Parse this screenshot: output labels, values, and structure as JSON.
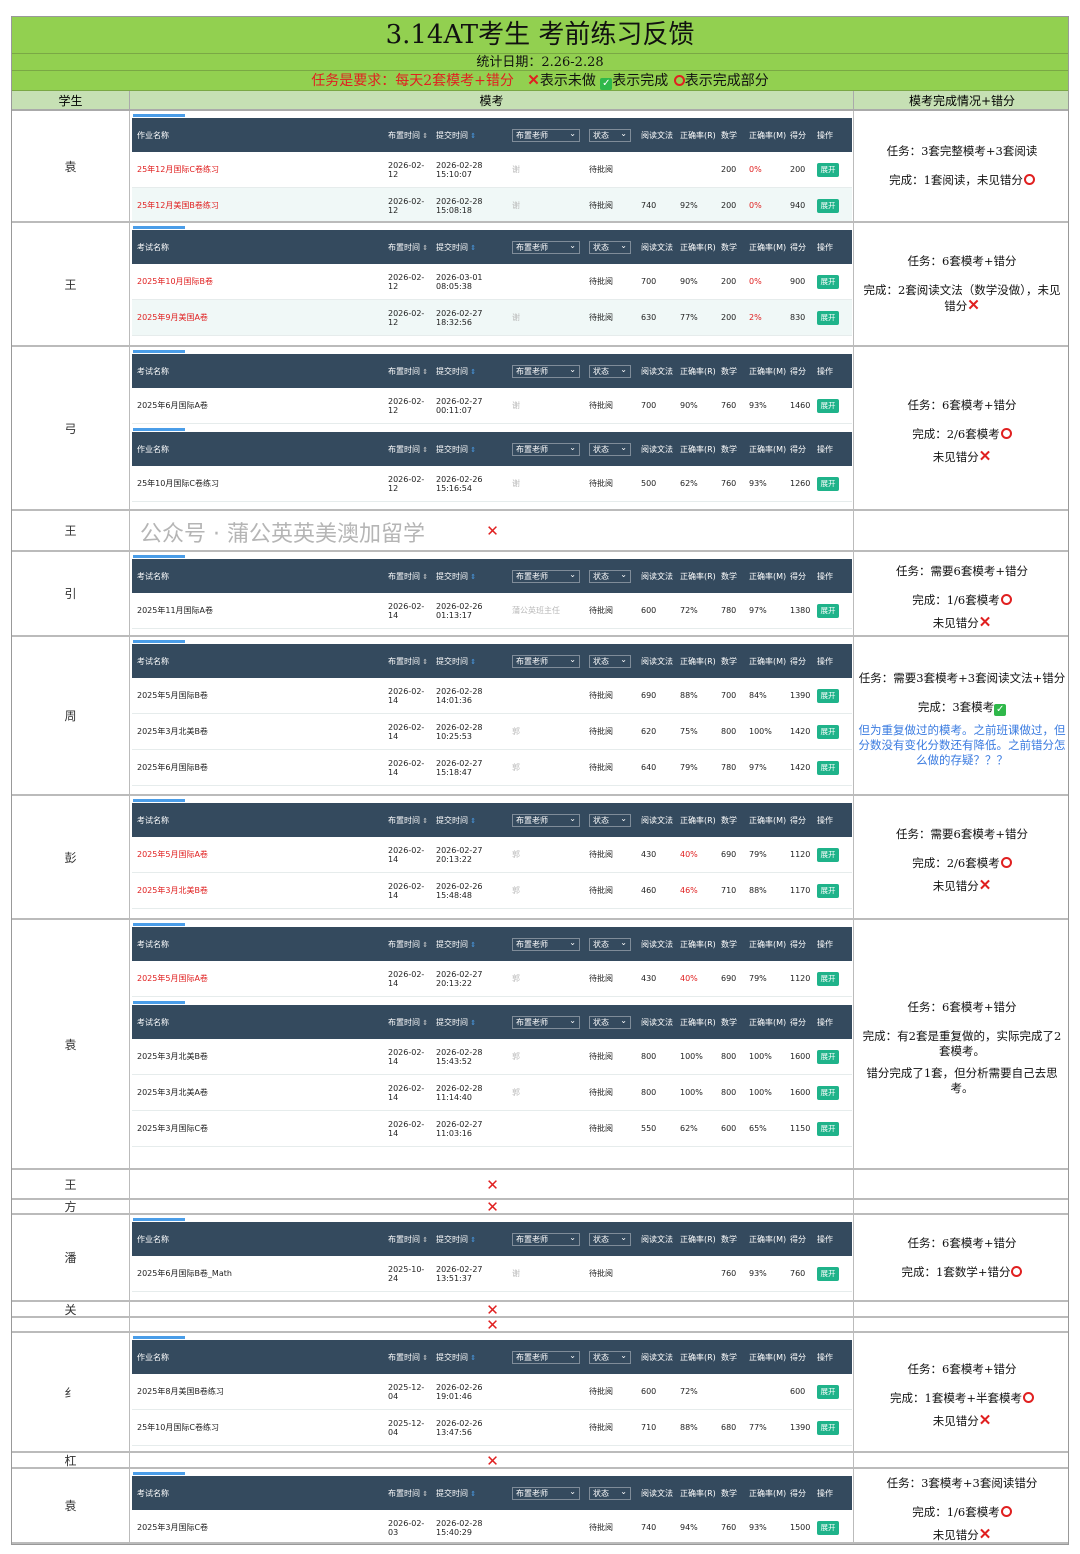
{
  "header": {
    "title": "3.14AT考生 考前练习反馈",
    "date_range": "统计日期：2.26-2.28",
    "task_requirement": "任务是要求：每天2套模考+错分",
    "legend_not_done": "表示未做",
    "legend_done": "表示完成",
    "legend_partial": "表示完成部分"
  },
  "columns": {
    "student": "学生",
    "mock": "模考",
    "status": "模考完成情况+错分"
  },
  "table_labels": {
    "name_hw": "作业名称",
    "name_exam": "考试名称",
    "assign_time": "布置时间",
    "submit_time": "提交时间",
    "teacher": "布置老师",
    "state": "状态",
    "reading": "阅读文法",
    "rate_r": "正确率(R)",
    "math": "数学",
    "rate_m": "正确率(M)",
    "score": "得分",
    "op": "操作",
    "status_value": "待批阅",
    "expand": "展开"
  },
  "colors": {
    "accent_green": "#92d050",
    "header_dark": "#344a5e",
    "red": "#e02020",
    "button": "#1fb38a",
    "note_blue": "#3a7be0"
  },
  "students": [
    {
      "name": "袁",
      "tables": [
        {
          "kind": "hw",
          "rows": [
            {
              "name": "25年12月国际C卷练习",
              "red": true,
              "assigned": "2026-02-12",
              "submitted": "2026-02-28 15:10:07",
              "teacher": "谢",
              "reading": "",
              "rate_r": "",
              "math": "200",
              "rate_m": "0%",
              "m_red": true,
              "score": "200"
            },
            {
              "name": "25年12月美国B卷练习",
              "red": true,
              "assigned": "2026-02-12",
              "submitted": "2026-02-28 15:08:18",
              "teacher": "谢",
              "reading": "740",
              "rate_r": "92%",
              "math": "200",
              "rate_m": "0%",
              "m_red": true,
              "score": "940"
            }
          ]
        }
      ],
      "remark": [
        {
          "text": "任务：3套完整模考+3套阅读"
        },
        {
          "text": "完成：1套阅读，未见错分",
          "mark": "circle"
        }
      ]
    },
    {
      "name": "王",
      "tables": [
        {
          "kind": "exam",
          "rows": [
            {
              "name": "2025年10月国际B卷",
              "red": true,
              "assigned": "2026-02-12",
              "submitted": "2026-03-01 08:05:38",
              "teacher": "",
              "reading": "700",
              "rate_r": "90%",
              "math": "200",
              "rate_m": "0%",
              "m_red": true,
              "score": "900"
            },
            {
              "name": "2025年9月美国A卷",
              "red": true,
              "assigned": "2026-02-12",
              "submitted": "2026-02-27 18:32:56",
              "teacher": "谢",
              "reading": "630",
              "rate_r": "77%",
              "math": "200",
              "rate_m": "2%",
              "m_red": true,
              "score": "830"
            }
          ]
        }
      ],
      "remark": [
        {
          "text": "任务：6套模考+错分"
        },
        {
          "text": "完成：2套阅读文法（数学没做），未见错分",
          "mark": "cross"
        }
      ]
    },
    {
      "name": "弓",
      "tables": [
        {
          "kind": "exam",
          "rows": [
            {
              "name": "2025年6月国际A卷",
              "assigned": "2026-02-12",
              "submitted": "2026-02-27 00:11:07",
              "teacher": "谢",
              "reading": "700",
              "rate_r": "90%",
              "math": "760",
              "rate_m": "93%",
              "score": "1460"
            }
          ]
        },
        {
          "kind": "hw",
          "rows": [
            {
              "name": "25年10月国际C卷练习",
              "assigned": "2026-02-12",
              "submitted": "2026-02-26 15:16:54",
              "teacher": "谢",
              "reading": "500",
              "rate_r": "62%",
              "math": "760",
              "rate_m": "93%",
              "score": "1260"
            }
          ]
        }
      ],
      "remark": [
        {
          "text": "任务：6套模考+错分"
        },
        {
          "text": "完成：2/6套模考",
          "mark": "circle"
        },
        {
          "text": "未见错分",
          "mark": "cross",
          "tight": true
        }
      ]
    },
    {
      "name": "王",
      "tables": [],
      "not_done": true,
      "remark": []
    },
    {
      "name": "引",
      "tables": [
        {
          "kind": "exam",
          "rows": [
            {
              "name": "2025年11月国际A卷",
              "assigned": "2026-02-14",
              "submitted": "2026-02-26 01:13:17",
              "teacher": "蒲公英班主任",
              "reading": "600",
              "rate_r": "72%",
              "math": "780",
              "rate_m": "97%",
              "score": "1380"
            }
          ]
        }
      ],
      "remark": [
        {
          "text": "任务：需要6套模考+错分"
        },
        {
          "text": "完成：1/6套模考",
          "mark": "circle"
        },
        {
          "text": "未见错分",
          "mark": "cross",
          "tight": true
        }
      ]
    },
    {
      "name": "周",
      "tables": [
        {
          "kind": "exam",
          "rows": [
            {
              "name": "2025年5月国际B卷",
              "assigned": "2026-02-14",
              "submitted": "2026-02-28 14:01:36",
              "teacher": "",
              "reading": "690",
              "rate_r": "88%",
              "math": "700",
              "rate_m": "84%",
              "score": "1390"
            },
            {
              "name": "2025年3月北美B卷",
              "assigned": "2026-02-14",
              "submitted": "2026-02-28 10:25:53",
              "teacher": "郭",
              "reading": "620",
              "rate_r": "75%",
              "math": "800",
              "rate_m": "100%",
              "score": "1420"
            },
            {
              "name": "2025年6月国际B卷",
              "assigned": "2026-02-14",
              "submitted": "2026-02-27 15:18:47",
              "teacher": "郭",
              "reading": "640",
              "rate_r": "79%",
              "math": "780",
              "rate_m": "97%",
              "score": "1420"
            }
          ]
        }
      ],
      "remark": [
        {
          "text": "任务：需要3套模考+3套阅读文法+错分"
        },
        {
          "text": "完成：3套模考",
          "mark": "check"
        },
        {
          "text": "但为重复做过的模考。之前班课做过，但分数没有变化分数还有降低。之前错分怎么做的存疑？？？",
          "blue": true,
          "tight": true
        }
      ]
    },
    {
      "name": "彭",
      "tables": [
        {
          "kind": "exam",
          "rows": [
            {
              "name": "2025年5月国际A卷",
              "red": true,
              "assigned": "2026-02-14",
              "submitted": "2026-02-27 20:13:22",
              "teacher": "郭",
              "reading": "430",
              "rate_r": "40%",
              "r_red": true,
              "math": "690",
              "rate_m": "79%",
              "score": "1120"
            },
            {
              "name": "2025年3月北美B卷",
              "red": true,
              "assigned": "2026-02-14",
              "submitted": "2026-02-26 15:48:48",
              "teacher": "郭",
              "reading": "460",
              "rate_r": "46%",
              "r_red": true,
              "math": "710",
              "rate_m": "88%",
              "score": "1170"
            }
          ]
        }
      ],
      "remark": [
        {
          "text": "任务：需要6套模考+错分"
        },
        {
          "text": "完成：2/6套模考",
          "mark": "circle"
        },
        {
          "text": "未见错分",
          "mark": "cross",
          "tight": true
        }
      ]
    },
    {
      "name": "袁",
      "tables": [
        {
          "kind": "exam",
          "rows": [
            {
              "name": "2025年5月国际A卷",
              "red": true,
              "assigned": "2026-02-14",
              "submitted": "2026-02-27 20:13:22",
              "teacher": "郭",
              "reading": "430",
              "rate_r": "40%",
              "r_red": true,
              "math": "690",
              "rate_m": "79%",
              "score": "1120"
            }
          ]
        },
        {
          "kind": "exam",
          "rows": [
            {
              "name": "2025年3月北美B卷",
              "assigned": "2026-02-14",
              "submitted": "2026-02-28 15:43:52",
              "teacher": "郭",
              "reading": "800",
              "rate_r": "100%",
              "math": "800",
              "rate_m": "100%",
              "score": "1600"
            },
            {
              "name": "2025年3月北美A卷",
              "assigned": "2026-02-14",
              "submitted": "2026-02-28 11:14:40",
              "teacher": "郭",
              "reading": "800",
              "rate_r": "100%",
              "math": "800",
              "rate_m": "100%",
              "score": "1600"
            },
            {
              "name": "2025年3月国际C卷",
              "assigned": "2026-02-14",
              "submitted": "2026-02-27 11:03:16",
              "teacher": "",
              "reading": "550",
              "rate_r": "62%",
              "math": "600",
              "rate_m": "65%",
              "score": "1150"
            }
          ]
        }
      ],
      "remark": [
        {
          "text": "任务：6套模考+错分"
        },
        {
          "text": "完成：有2套是重复做的，实际完成了2套模考。"
        },
        {
          "text": "错分完成了1套，但分析需要自己去思考。",
          "tight": true
        }
      ]
    },
    {
      "name": "王",
      "tables": [],
      "not_done": true,
      "remark": []
    },
    {
      "name": "方",
      "tables": [],
      "not_done": true,
      "remark": []
    },
    {
      "name": "潘",
      "tables": [
        {
          "kind": "hw",
          "rows": [
            {
              "name": "2025年6月国际B卷_Math",
              "assigned": "2025-10-24",
              "submitted": "2026-02-27 13:51:37",
              "teacher": "谢",
              "reading": "",
              "rate_r": "",
              "math": "760",
              "rate_m": "93%",
              "score": "760"
            }
          ]
        }
      ],
      "remark": [
        {
          "text": "任务：6套模考+错分"
        },
        {
          "text": "完成：1套数学+错分",
          "mark": "circle"
        }
      ]
    },
    {
      "name": "关",
      "tables": [],
      "not_done": true,
      "remark": []
    },
    {
      "name": "",
      "tables": [],
      "not_done": true,
      "remark": []
    },
    {
      "name": "纟",
      "tables": [
        {
          "kind": "hw",
          "rows": [
            {
              "name": "2025年8月美国B卷练习",
              "assigned": "2025-12-04",
              "submitted": "2026-02-26 19:01:46",
              "teacher": "",
              "reading": "600",
              "rate_r": "72%",
              "math": "",
              "rate_m": "",
              "score": "600"
            },
            {
              "name": "25年10月国际C卷练习",
              "assigned": "2025-12-04",
              "submitted": "2026-02-26 13:47:56",
              "teacher": "",
              "reading": "710",
              "rate_r": "88%",
              "math": "680",
              "rate_m": "77%",
              "score": "1390"
            }
          ]
        }
      ],
      "remark": [
        {
          "text": "任务：6套模考+错分"
        },
        {
          "text": "完成：1套模考+半套模考",
          "mark": "circle"
        },
        {
          "text": "未见错分",
          "mark": "cross",
          "tight": true
        }
      ]
    },
    {
      "name": "杠",
      "tables": [],
      "not_done": true,
      "remark": []
    },
    {
      "name": "袁",
      "tables": [
        {
          "kind": "exam",
          "rows": [
            {
              "name": "2025年3月国际C卷",
              "assigned": "2026-02-03",
              "submitted": "2026-02-28 15:40:29",
              "teacher": "",
              "reading": "740",
              "rate_r": "94%",
              "math": "760",
              "rate_m": "93%",
              "score": "1500"
            }
          ]
        }
      ],
      "remark": [
        {
          "text": "任务：3套模考+3套阅读错分"
        },
        {
          "text": "完成：1/6套模考",
          "mark": "circle"
        },
        {
          "text": "未见错分",
          "mark": "cross",
          "tight": true
        }
      ]
    }
  ],
  "watermark": "公众号 · 蒲公英英美澳加留学"
}
